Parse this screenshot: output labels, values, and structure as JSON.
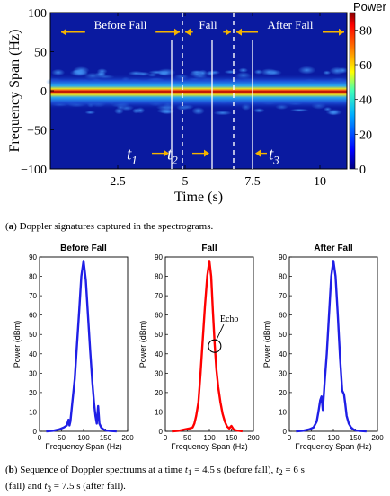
{
  "chart_data": [
    {
      "type": "heatmap",
      "xlabel": "Time (s)",
      "ylabel": "Frequency Span (Hz)",
      "xlim": [
        0,
        11
      ],
      "ylim": [
        -100,
        100
      ],
      "xticks": [
        "2.5",
        "5",
        "7.5",
        "10"
      ],
      "xtick_values": [
        2.5,
        5,
        7.5,
        10
      ],
      "yticks": [
        "100",
        "50",
        "0",
        "−50",
        "−100"
      ],
      "ytick_values": [
        100,
        50,
        0,
        -50,
        -100
      ],
      "colorbar": {
        "title": "Power",
        "range": [
          0,
          90
        ],
        "ticks": [
          "80",
          "60",
          "40",
          "20",
          "0"
        ],
        "tick_values": [
          80,
          60,
          40,
          20,
          0
        ]
      },
      "phases": [
        {
          "label": "Before Fall",
          "start": 0.3,
          "end": 4.9
        },
        {
          "label": "Fall",
          "start": 4.9,
          "end": 6.8
        },
        {
          "label": "After Fall",
          "start": 6.8,
          "end": 11
        }
      ],
      "phase_boundaries": [
        4.9,
        6.8
      ],
      "time_markers": [
        {
          "label": "t",
          "sub": "1",
          "t": 4.5
        },
        {
          "label": "t",
          "sub": "2",
          "t": 6.0
        },
        {
          "label": "t",
          "sub": "3",
          "t": 7.5
        }
      ]
    },
    {
      "type": "line",
      "title": "Before Fall",
      "xlabel": "Frequency Span (Hz)",
      "ylabel": "Power (dBm)",
      "xlim": [
        0,
        200
      ],
      "ylim": [
        0,
        90
      ],
      "xticks": [
        0,
        50,
        100,
        150,
        200
      ],
      "yticks": [
        0,
        10,
        20,
        30,
        40,
        50,
        60,
        70,
        80,
        90
      ],
      "color": "#1f1fe6",
      "x": [
        15,
        30,
        45,
        55,
        62,
        66,
        68,
        70,
        74,
        80,
        85,
        90,
        95,
        100,
        105,
        110,
        115,
        120,
        124,
        127,
        130,
        133,
        136,
        140,
        145,
        150,
        160,
        175
      ],
      "y": [
        0,
        0.3,
        1,
        2,
        3,
        6,
        3,
        5,
        14,
        27,
        45,
        62,
        80,
        88,
        78,
        60,
        42,
        25,
        14,
        8,
        4,
        13,
        4,
        2,
        1,
        0.5,
        0.2,
        0
      ]
    },
    {
      "type": "line",
      "title": "Fall",
      "xlabel": "Frequency Span (Hz)",
      "ylabel": "Power (dBm)",
      "xlim": [
        0,
        200
      ],
      "ylim": [
        0,
        90
      ],
      "xticks": [
        0,
        50,
        100,
        150,
        200
      ],
      "yticks": [
        0,
        10,
        20,
        30,
        40,
        50,
        60,
        70,
        80,
        90
      ],
      "color": "#ff0000",
      "annotation": {
        "text": "Echo",
        "x": 112,
        "y": 44
      },
      "x": [
        15,
        30,
        45,
        55,
        62,
        66,
        70,
        75,
        80,
        85,
        90,
        95,
        100,
        104,
        108,
        112,
        116,
        120,
        125,
        130,
        135,
        140,
        145,
        150,
        155,
        160,
        175
      ],
      "y": [
        0,
        0.3,
        1,
        1.5,
        2,
        4,
        8,
        15,
        30,
        48,
        65,
        80,
        88,
        80,
        62,
        45,
        32,
        23,
        15,
        9,
        5,
        2.5,
        1.5,
        2.8,
        1,
        0.5,
        0
      ]
    },
    {
      "type": "line",
      "title": "After Fall",
      "xlabel": "Frequency Span (Hz)",
      "ylabel": "Power (dBm)",
      "xlim": [
        0,
        200
      ],
      "ylim": [
        0,
        90
      ],
      "xticks": [
        0,
        50,
        100,
        150,
        200
      ],
      "yticks": [
        0,
        10,
        20,
        30,
        40,
        50,
        60,
        70,
        80,
        90
      ],
      "color": "#1f1fe6",
      "x": [
        15,
        30,
        45,
        55,
        62,
        66,
        70,
        73,
        76,
        80,
        85,
        90,
        95,
        100,
        105,
        110,
        115,
        120,
        124,
        127,
        130,
        135,
        140,
        145,
        150,
        160,
        175
      ],
      "y": [
        0,
        0.3,
        1,
        2,
        5,
        10,
        16,
        18,
        11,
        25,
        40,
        60,
        80,
        88,
        80,
        60,
        38,
        21,
        19,
        14,
        8,
        4,
        2,
        1,
        0.5,
        0.2,
        0
      ]
    }
  ],
  "captions": {
    "a": {
      "tag": "a",
      "text": "Doppler signatures captured in the spectrograms."
    },
    "b": {
      "tag": "b",
      "p1": "Sequence of Doppler spectrums at a time ",
      "t1": "4.5 s (before fall), ",
      "t2": "6 s",
      "p2": "(fall) and ",
      "t3": "7.5 s (after fall)."
    }
  }
}
